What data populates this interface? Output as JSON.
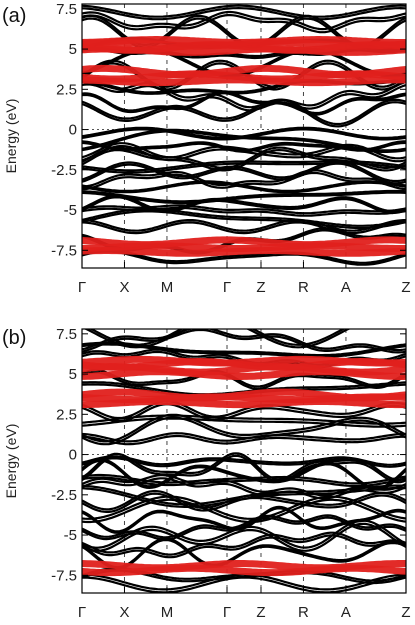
{
  "chart_data": [
    {
      "type": "line",
      "panel_label": "(a)",
      "ylabel": "Energy (eV)",
      "ylim": [
        -8.6,
        7.8
      ],
      "y_ticks": [
        "7.5",
        "5",
        "2.5",
        "0",
        "-2.5",
        "-5",
        "-7.5"
      ],
      "y_tick_values": [
        7.5,
        5,
        2.5,
        0,
        -2.5,
        -5,
        -7.5
      ],
      "k_path": [
        "Γ",
        "X",
        "M",
        "Γ",
        "Z",
        "R",
        "A",
        "Z"
      ],
      "k_positions": [
        0,
        0.5,
        1.0,
        1.707,
        2.107,
        2.607,
        3.107,
        3.814
      ],
      "fermi_level": 0,
      "grid": "vertical dashed lines at high-symmetry points",
      "series_colors": {
        "bands": "#000000",
        "projected": "#e0201c"
      },
      "band_centers": [
        -8.0,
        -7.0,
        -6.1,
        -5.6,
        -5.1,
        -4.7,
        -4.2,
        -3.6,
        -3.2,
        -2.7,
        -2.3,
        -1.9,
        -1.5,
        -1.1,
        -0.7,
        -0.3,
        1.0,
        1.6,
        2.0,
        2.6,
        3.3,
        4.1,
        4.7,
        5.3,
        6.0,
        6.6,
        7.2
      ],
      "projected_bands": [
        -7.6,
        -7.3,
        -7.0,
        3.0,
        3.3,
        3.6,
        4.9,
        5.1,
        5.3,
        5.5
      ]
    },
    {
      "type": "line",
      "panel_label": "(b)",
      "ylabel": "Energy (eV)",
      "ylim": [
        -8.6,
        7.8
      ],
      "y_ticks": [
        "7.5",
        "5",
        "2.5",
        "0",
        "-2.5",
        "-5",
        "-7.5"
      ],
      "y_tick_values": [
        7.5,
        5,
        2.5,
        0,
        -2.5,
        -5,
        -7.5
      ],
      "k_path": [
        "Γ",
        "X",
        "M",
        "Γ",
        "Z",
        "R",
        "A",
        "Z"
      ],
      "k_positions": [
        0,
        0.5,
        1.0,
        1.707,
        2.107,
        2.607,
        3.107,
        3.814
      ],
      "fermi_level": 0,
      "grid": "vertical dashed lines at high-symmetry points",
      "series_colors": {
        "bands": "#000000",
        "projected": "#e0201c"
      },
      "band_centers": [
        -8.1,
        -7.6,
        -6.2,
        -5.7,
        -5.2,
        -4.6,
        -4.1,
        -3.5,
        -3.0,
        -2.6,
        -2.1,
        -1.7,
        -1.3,
        -0.9,
        -0.5,
        0.9,
        1.5,
        2.0,
        2.6,
        4.0,
        4.6,
        5.9,
        6.4,
        7.0,
        7.5
      ],
      "projected_bands": [
        -7.2,
        -6.9,
        3.2,
        3.5,
        3.7,
        5.0,
        5.3,
        5.6,
        5.8
      ]
    }
  ]
}
